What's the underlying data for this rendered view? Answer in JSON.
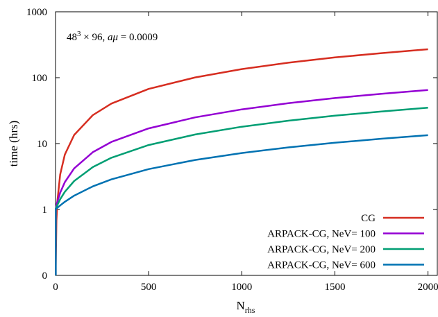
{
  "chart_data": {
    "type": "line",
    "title": "",
    "xlabel": "N",
    "xlabel_sub": "rhs",
    "ylabel": "time (hrs)",
    "xlim": [
      0,
      2050
    ],
    "ylim": [
      0.1,
      1000
    ],
    "y_scale": "log",
    "grid": false,
    "legend_position": "bottom-right",
    "x_ticks": [
      0,
      500,
      1000,
      1500,
      2000
    ],
    "y_ticks": [
      {
        "value": 0.1,
        "label": "0"
      },
      {
        "value": 1,
        "label": "1"
      },
      {
        "value": 10,
        "label": "10"
      },
      {
        "value": 100,
        "label": "100"
      },
      {
        "value": 1000,
        "label": "1000"
      }
    ],
    "annotation": {
      "lattice": "48",
      "exponent": "3",
      "rest": " × 96, ",
      "mass_symbol": "aμ",
      "mass_value": " = 0.0009"
    },
    "series": [
      {
        "name": "CG",
        "color": "#d62d20",
        "x": [
          1,
          5,
          10,
          25,
          50,
          100,
          200,
          300,
          500,
          750,
          1000,
          1250,
          1500,
          1750,
          2000
        ],
        "y": [
          0.14,
          0.68,
          1.35,
          3.4,
          6.8,
          13.5,
          27,
          40.5,
          67.5,
          101,
          135,
          169,
          203,
          236,
          270
        ]
      },
      {
        "name": "ARPACK-CG, NeV= 100",
        "color": "#9400d3",
        "x": [
          1,
          5,
          10,
          25,
          50,
          100,
          200,
          300,
          500,
          750,
          1000,
          1250,
          1500,
          1750,
          2000
        ],
        "y": [
          1.03,
          1.16,
          1.32,
          1.8,
          2.6,
          4.2,
          7.4,
          10.6,
          17,
          25,
          33,
          41,
          49,
          57,
          65
        ]
      },
      {
        "name": "ARPACK-CG, NeV= 200",
        "color": "#009e73",
        "x": [
          1,
          5,
          10,
          25,
          50,
          100,
          200,
          300,
          500,
          750,
          1000,
          1250,
          1500,
          1750,
          2000
        ],
        "y": [
          1.02,
          1.09,
          1.17,
          1.43,
          1.85,
          2.7,
          4.4,
          6.1,
          9.5,
          13.75,
          18,
          22.25,
          26.5,
          30.75,
          35
        ]
      },
      {
        "name": "ARPACK-CG, NeV= 600",
        "color": "#0072b2",
        "x": [
          1,
          5,
          10,
          25,
          50,
          100,
          200,
          300,
          500,
          750,
          1000,
          1250,
          1500,
          1750,
          2000
        ],
        "y": [
          1.01,
          1.03,
          1.06,
          1.15,
          1.31,
          1.62,
          2.24,
          2.86,
          4.1,
          5.65,
          7.2,
          8.75,
          10.3,
          11.85,
          13.4
        ]
      }
    ]
  }
}
